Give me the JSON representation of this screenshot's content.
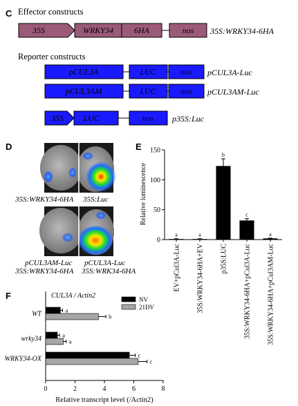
{
  "panel_c": {
    "letter": "C",
    "effector_title": "Effector constructs",
    "effector_segments": [
      "35S",
      "WRKY34",
      "6HA",
      "nos"
    ],
    "effector_name": "35S:WRKY34-6HA",
    "reporter_title": "Reporter constructs",
    "reporters": [
      {
        "segments": [
          "pCUL3A",
          "LUC",
          "nos"
        ],
        "name": "pCUL3A-Luc"
      },
      {
        "segments": [
          "pCUL3AM",
          "LUC",
          "nos"
        ],
        "name": "pCUL3AM-Luc"
      },
      {
        "segments": [
          "35S",
          "LUC",
          "nos"
        ],
        "name": "p35S:Luc"
      }
    ],
    "colors": {
      "effector": "#9b5a78",
      "reporter": "#1a1aff"
    }
  },
  "panel_d": {
    "letter": "D",
    "top_left_label": "35S:WRKY34-6HA",
    "top_right_label": "35S:Luc",
    "bottom_left_label_1": "pCUL3AM-Luc",
    "bottom_left_label_2": "35S:WRKY34-6HA",
    "bottom_right_label_1": "pCUL3A-Luc",
    "bottom_right_label_2": "35S:WRK34-6HA"
  },
  "panel_e": {
    "letter": "E",
    "chart_data": {
      "type": "bar",
      "categories": [
        "EV+pCul3A-Luc",
        "35S:WRKY34-6HA+EV",
        "p35S:LUC",
        "35S:WRKY34-6HA+pCul3A-Luc",
        "35S:WRKY34-6HA+pCul3AM-Luc"
      ],
      "values": [
        1,
        1,
        123,
        32,
        2
      ],
      "errors": [
        0.5,
        0.5,
        12,
        3,
        0.5
      ],
      "letters": [
        "a",
        "a",
        "b",
        "c",
        "a"
      ],
      "ylabel": "Relative luminescence",
      "ylim": [
        0,
        150
      ],
      "yticks": [
        "0",
        "50",
        "100",
        "150"
      ],
      "bar_color": "#000000"
    }
  },
  "panel_f": {
    "letter": "F",
    "chart_data": {
      "type": "bar",
      "orientation": "horizontal",
      "title": "CUL3A / Actin2",
      "categories": [
        "WT",
        "wrky34",
        "WRKY34-OX"
      ],
      "series": [
        {
          "name": "NV",
          "values": [
            1.0,
            0.8,
            5.7
          ],
          "errors": [
            0.15,
            0.15,
            0.4
          ],
          "letters": [
            "a",
            "a",
            "c"
          ],
          "color": "#000000"
        },
        {
          "name": "21DV",
          "values": [
            3.6,
            1.2,
            6.3
          ],
          "errors": [
            0.5,
            0.2,
            0.6
          ],
          "letters": [
            "b",
            "a",
            "c"
          ],
          "color": "#a6a6a6"
        }
      ],
      "xlabel": "Relative transcript level (/Actin2)",
      "xlim": [
        0,
        8
      ],
      "xticks": [
        "0",
        "2",
        "4",
        "6",
        "8"
      ]
    }
  }
}
